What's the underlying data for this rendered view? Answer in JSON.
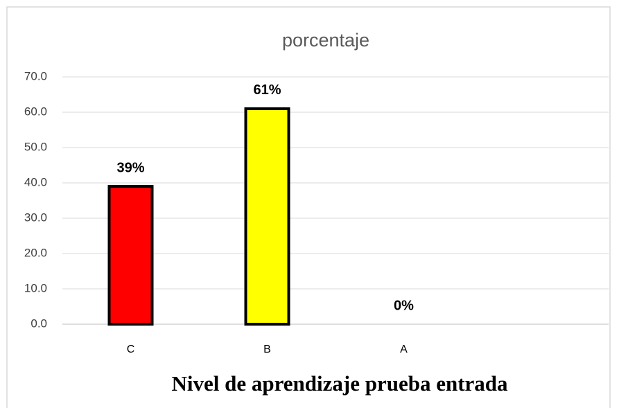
{
  "chart_data": {
    "type": "bar",
    "title": "porcentaje",
    "x_label": "Nivel de aprendizaje prueba entrada",
    "categories": [
      "C",
      "B",
      "A",
      null
    ],
    "values": [
      39,
      61,
      0,
      null
    ],
    "value_labels": [
      "39%",
      "61%",
      "0%",
      null
    ],
    "colors": [
      "#ff0000",
      "#ffff00",
      null,
      null
    ],
    "ylim": [
      0,
      70
    ],
    "yticks": [
      {
        "value": 0,
        "label": "0.0"
      },
      {
        "value": 10,
        "label": "10.0"
      },
      {
        "value": 20,
        "label": "20.0"
      },
      {
        "value": 30,
        "label": "30.0"
      },
      {
        "value": 40,
        "label": "40.0"
      },
      {
        "value": 50,
        "label": "50.0"
      },
      {
        "value": 60,
        "label": "60.0"
      },
      {
        "value": 70,
        "label": "70.0"
      }
    ],
    "grid": true
  }
}
